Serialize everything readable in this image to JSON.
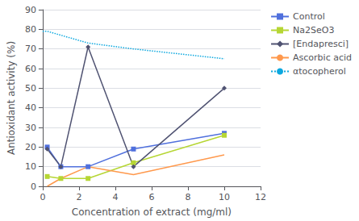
{
  "chart_data": {
    "type": "line",
    "xlabel": "Concentration of extract (mg/ml)",
    "ylabel": "Antioxidant activity (%)",
    "xlim": [
      0,
      12
    ],
    "xticks": [
      0,
      2,
      4,
      6,
      8,
      10,
      12
    ],
    "ylim": [
      0,
      90
    ],
    "yticks": [
      0,
      10,
      20,
      30,
      40,
      50,
      60,
      70,
      80,
      90
    ],
    "grid": true,
    "legend": "right",
    "series": [
      {
        "name": "Control",
        "x": [
          0.25,
          1,
          2.5,
          5,
          10
        ],
        "values": [
          20,
          10,
          10,
          19,
          27
        ],
        "marker": "square",
        "line_style": "solid"
      },
      {
        "name": "Na2SeO3",
        "x": [
          0.25,
          1,
          2.5,
          5,
          10
        ],
        "values": [
          5,
          4,
          4,
          12,
          26
        ],
        "marker": "square",
        "line_style": "solid"
      },
      {
        "name": "[Endapresci]",
        "x": [
          0.25,
          1,
          2.5,
          5,
          10
        ],
        "values": [
          19,
          10,
          71,
          10,
          50
        ],
        "marker": "diamond",
        "line_style": "solid"
      },
      {
        "name": "Ascorbic acid",
        "x": [
          0.25,
          1,
          2.5,
          5,
          10
        ],
        "values": [
          0,
          4,
          10,
          6,
          16
        ],
        "marker": "none",
        "line_style": "solid"
      },
      {
        "name": "αtocopherol",
        "x": [
          0.0,
          0.25,
          1,
          2.5,
          5,
          10
        ],
        "values": [
          79,
          79,
          77,
          73,
          70,
          65
        ],
        "marker": "none",
        "line_style": "dotted"
      }
    ]
  }
}
